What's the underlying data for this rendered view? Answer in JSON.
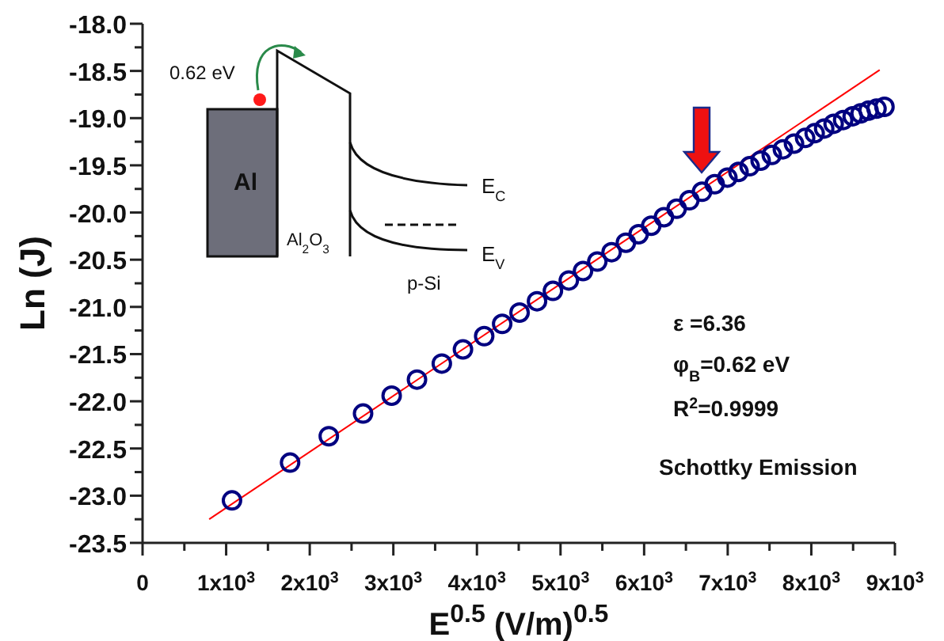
{
  "chart_data": {
    "type": "scatter",
    "xlabel": "E$^{0.5}$ (V/m)$^{0.5}$",
    "ylabel": "Ln (J)",
    "xlim": [
      0,
      9000
    ],
    "ylim": [
      -23.5,
      -18
    ],
    "xticks": [
      {
        "value": 0,
        "label": "0"
      },
      {
        "value": 500,
        "label": null
      },
      {
        "value": 1000,
        "label": "1x10$^{3}$"
      },
      {
        "value": 1500,
        "label": null
      },
      {
        "value": 2000,
        "label": "2x10$^{3}$"
      },
      {
        "value": 2500,
        "label": null
      },
      {
        "value": 3000,
        "label": "3x10$^{3}$"
      },
      {
        "value": 3500,
        "label": null
      },
      {
        "value": 4000,
        "label": "4x10$^{3}$"
      },
      {
        "value": 4500,
        "label": null
      },
      {
        "value": 5000,
        "label": "5x10$^{3}$"
      },
      {
        "value": 5500,
        "label": null
      },
      {
        "value": 6000,
        "label": "6x10$^{3}$"
      },
      {
        "value": 6500,
        "label": null
      },
      {
        "value": 7000,
        "label": "7x10$^{3}$"
      },
      {
        "value": 7500,
        "label": null
      },
      {
        "value": 8000,
        "label": "8x10$^{3}$"
      },
      {
        "value": 8500,
        "label": null
      },
      {
        "value": 9000,
        "label": "9x10$^{3}$"
      }
    ],
    "yticks": [
      {
        "value": -23.5,
        "label": "-23.5"
      },
      {
        "value": -23.25,
        "label": null
      },
      {
        "value": -23,
        "label": "-23.0"
      },
      {
        "value": -22.75,
        "label": null
      },
      {
        "value": -22.5,
        "label": "-22.5"
      },
      {
        "value": -22.25,
        "label": null
      },
      {
        "value": -22,
        "label": "-22.0"
      },
      {
        "value": -21.75,
        "label": null
      },
      {
        "value": -21.5,
        "label": "-21.5"
      },
      {
        "value": -21.25,
        "label": null
      },
      {
        "value": -21,
        "label": "-21.0"
      },
      {
        "value": -20.75,
        "label": null
      },
      {
        "value": -20.5,
        "label": "-20.5"
      },
      {
        "value": -20.25,
        "label": null
      },
      {
        "value": -20,
        "label": "-20.0"
      },
      {
        "value": -19.75,
        "label": null
      },
      {
        "value": -19.5,
        "label": "-19.5"
      },
      {
        "value": -19.25,
        "label": null
      },
      {
        "value": -19,
        "label": "-19.0"
      },
      {
        "value": -18.75,
        "label": null
      },
      {
        "value": -18.5,
        "label": "-18.5"
      },
      {
        "value": -18.25,
        "label": null
      },
      {
        "value": -18,
        "label": "-18.0"
      }
    ],
    "grid": false,
    "legend": false,
    "marker": "circle",
    "series": [
      {
        "type": "scatter",
        "color": "#000080",
        "x": [
          1070,
          1765,
          2228,
          2638,
          2980,
          3283,
          3580,
          3833,
          4087,
          4302,
          4510,
          4719,
          4909,
          5099,
          5269,
          5440,
          5611,
          5782,
          5934,
          6085,
          6237,
          6389,
          6541,
          6693,
          6844,
          6996,
          7129,
          7262,
          7394,
          7527,
          7660,
          7793,
          7926,
          8040,
          8154,
          8267,
          8381,
          8495,
          8590,
          8685,
          8780,
          8875
        ],
        "values": [
          -23.05,
          -22.65,
          -22.37,
          -22.13,
          -21.94,
          -21.77,
          -21.6,
          -21.45,
          -21.31,
          -21.18,
          -21.06,
          -20.94,
          -20.83,
          -20.72,
          -20.62,
          -20.52,
          -20.42,
          -20.32,
          -20.23,
          -20.14,
          -20.05,
          -19.96,
          -19.87,
          -19.78,
          -19.7,
          -19.63,
          -19.57,
          -19.51,
          -19.45,
          -19.39,
          -19.33,
          -19.27,
          -19.21,
          -19.16,
          -19.11,
          -19.06,
          -19.02,
          -18.98,
          -18.95,
          -18.92,
          -18.9,
          -18.88
        ]
      },
      {
        "type": "line",
        "color": "#ff0000",
        "marker": "none",
        "line_style": "solid",
        "x": [
          797,
          8818
        ],
        "values": [
          -23.25,
          -18.49
        ]
      }
    ],
    "annotations": [
      "0.62 eV",
      "Al",
      "Al$_{2}$O$_{3}$",
      "p-Si",
      "E$_{C}$",
      "E$_{V}$",
      "ε =6.36",
      "φ$_{B}$=0.62 eV",
      "R$^{2}$=0.9999",
      "Schottky Emission"
    ]
  }
}
